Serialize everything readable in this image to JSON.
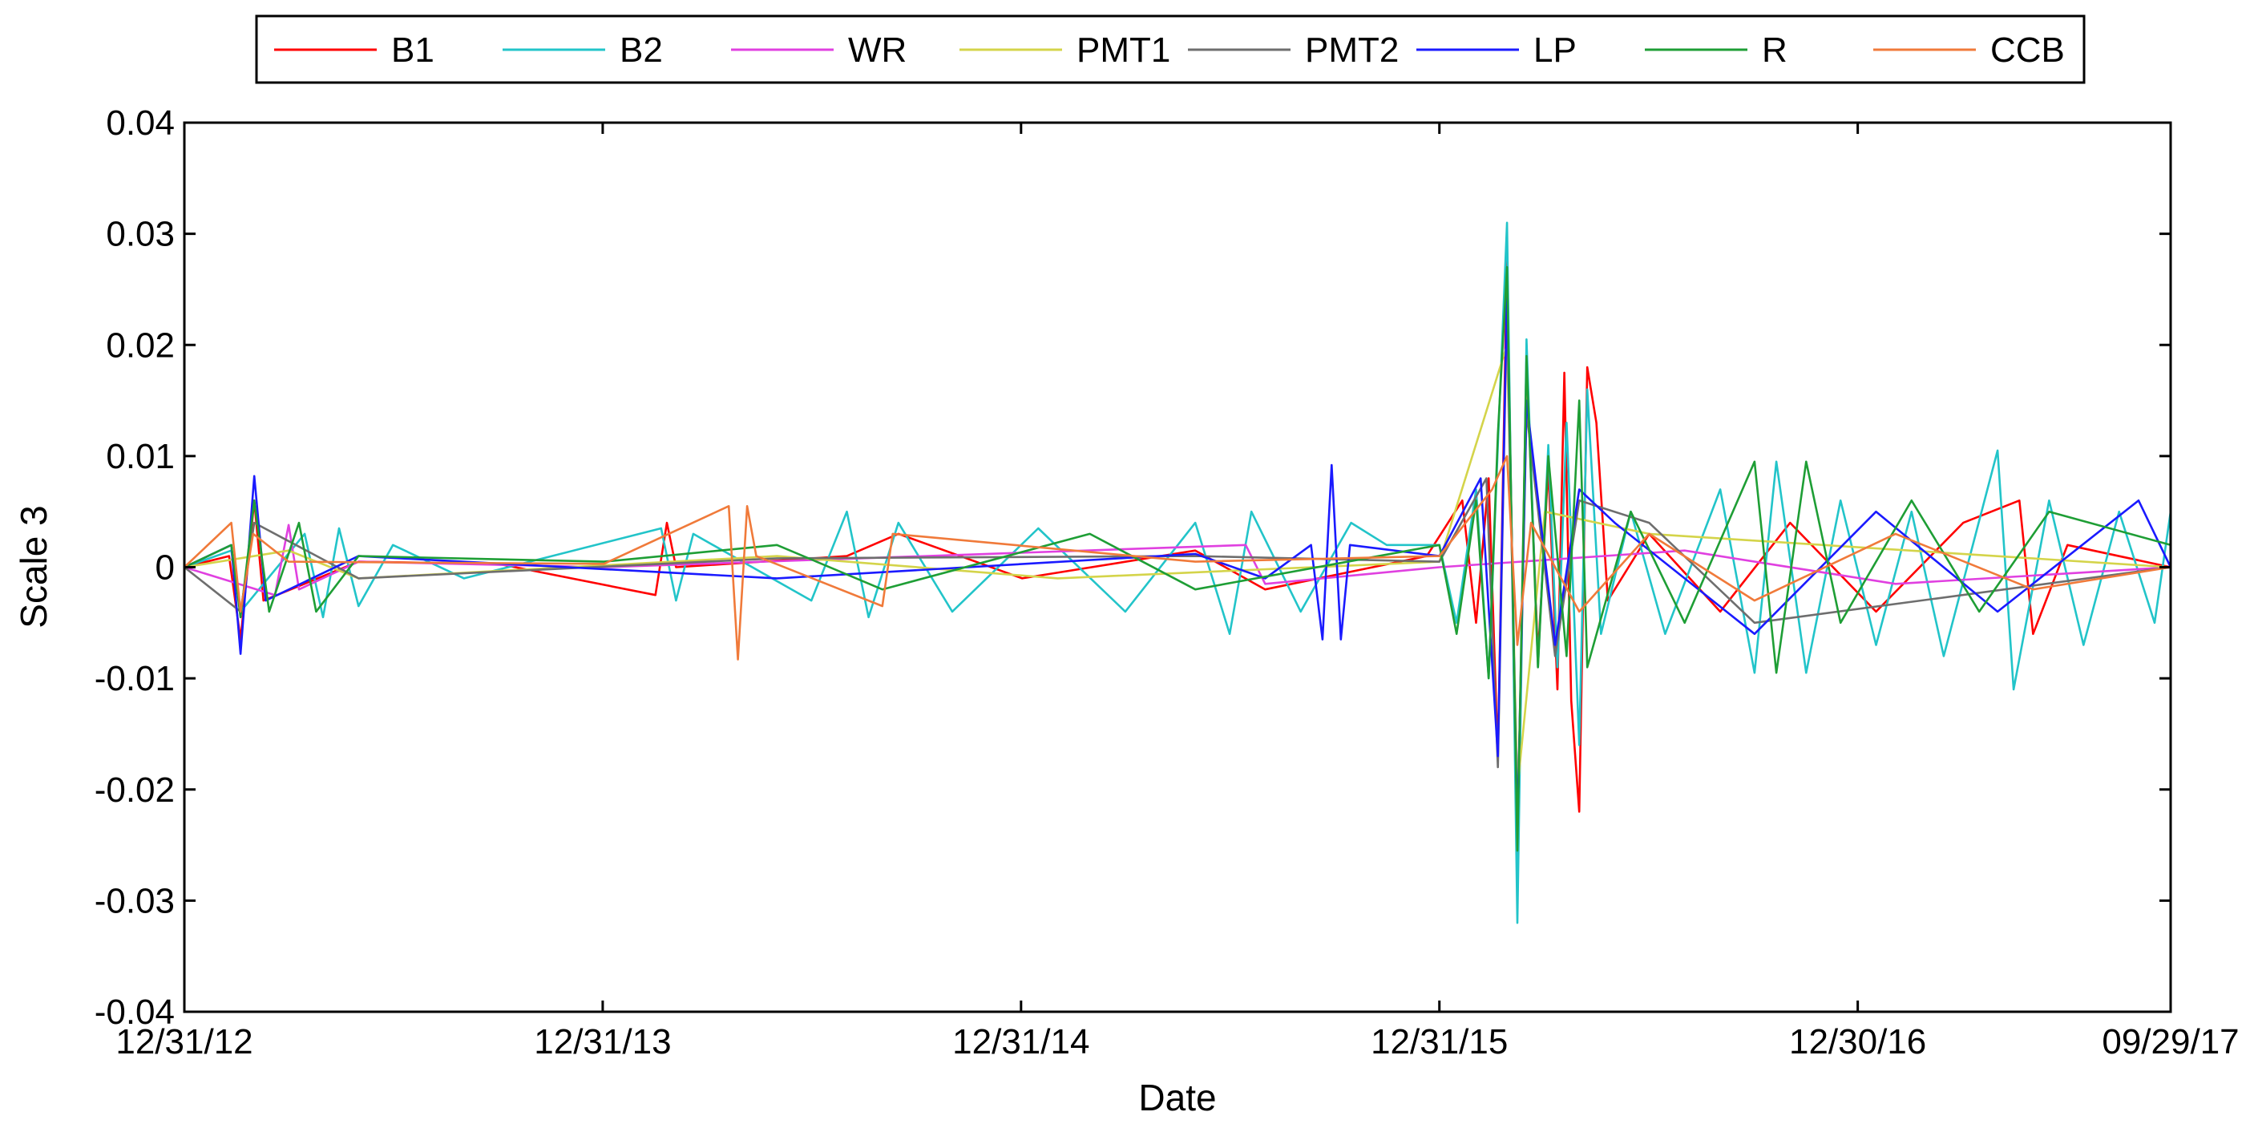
{
  "chart_data": {
    "type": "line",
    "title": "",
    "xlabel": "Date",
    "ylabel": "Scale 3",
    "ylim": [
      -0.04,
      0.04
    ],
    "yticks": [
      -0.04,
      -0.03,
      -0.02,
      -0.01,
      0,
      0.01,
      0.02,
      0.03,
      0.04
    ],
    "ytick_labels": [
      "-0.04",
      "-0.03",
      "-0.02",
      "-0.01",
      "0",
      "0.01",
      "0.02",
      "0.03",
      "0.04"
    ],
    "xlim": [
      "2012-12-31",
      "2017-09-29"
    ],
    "xticks": [
      "2012-12-31",
      "2013-12-31",
      "2014-12-31",
      "2015-12-31",
      "2016-12-30",
      "2017-09-29"
    ],
    "xtick_labels": [
      "12/31/12",
      "12/31/13",
      "12/31/14",
      "12/31/15",
      "12/30/16",
      "09/29/17"
    ],
    "grid": false,
    "legend_position": "top-center",
    "series": [
      {
        "name": "B1",
        "color": "#ff0000",
        "points": [
          [
            "2012-12-31",
            0
          ],
          [
            "2013-02-08",
            0.001
          ],
          [
            "2013-02-18",
            -0.0065
          ],
          [
            "2013-03-02",
            0.006
          ],
          [
            "2013-03-10",
            -0.003
          ],
          [
            "2013-06-01",
            0.0005
          ],
          [
            "2013-10-01",
            0.0003
          ],
          [
            "2014-02-15",
            -0.0025
          ],
          [
            "2014-02-25",
            0.004
          ],
          [
            "2014-03-05",
            0
          ],
          [
            "2014-08-01",
            0.001
          ],
          [
            "2014-09-15",
            0.003
          ],
          [
            "2015-01-01",
            -0.001
          ],
          [
            "2015-06-01",
            0.0015
          ],
          [
            "2015-08-01",
            -0.002
          ],
          [
            "2015-12-20",
            0.001
          ],
          [
            "2016-01-20",
            0.006
          ],
          [
            "2016-02-01",
            -0.005
          ],
          [
            "2016-02-12",
            0.008
          ],
          [
            "2016-02-20",
            -0.017
          ],
          [
            "2016-02-28",
            0.028
          ],
          [
            "2016-03-08",
            -0.028
          ],
          [
            "2016-03-16",
            0.019
          ],
          [
            "2016-03-26",
            -0.008
          ],
          [
            "2016-04-04",
            0.009
          ],
          [
            "2016-04-12",
            -0.011
          ],
          [
            "2016-04-18",
            0.0175
          ],
          [
            "2016-04-24",
            -0.012
          ],
          [
            "2016-05-01",
            -0.022
          ],
          [
            "2016-05-08",
            0.018
          ],
          [
            "2016-05-16",
            0.013
          ],
          [
            "2016-05-26",
            -0.003
          ],
          [
            "2016-07-01",
            0.003
          ],
          [
            "2016-09-01",
            -0.004
          ],
          [
            "2016-11-01",
            0.004
          ],
          [
            "2017-01-15",
            -0.004
          ],
          [
            "2017-04-01",
            0.004
          ],
          [
            "2017-05-20",
            0.006
          ],
          [
            "2017-06-01",
            -0.006
          ],
          [
            "2017-07-01",
            0.002
          ],
          [
            "2017-09-29",
            0
          ]
        ]
      },
      {
        "name": "B2",
        "color": "#22c4c9",
        "points": [
          [
            "2012-12-31",
            0
          ],
          [
            "2013-02-10",
            0.0015
          ],
          [
            "2013-02-18",
            -0.004
          ],
          [
            "2013-04-15",
            0.003
          ],
          [
            "2013-05-01",
            -0.0045
          ],
          [
            "2013-05-15",
            0.0035
          ],
          [
            "2013-06-01",
            -0.0035
          ],
          [
            "2013-07-01",
            0.002
          ],
          [
            "2013-09-01",
            -0.001
          ],
          [
            "2014-02-20",
            0.0035
          ],
          [
            "2014-03-05",
            -0.003
          ],
          [
            "2014-03-20",
            0.003
          ],
          [
            "2014-07-01",
            -0.003
          ],
          [
            "2014-08-01",
            0.005
          ],
          [
            "2014-08-20",
            -0.0045
          ],
          [
            "2014-09-15",
            0.004
          ],
          [
            "2014-11-01",
            -0.004
          ],
          [
            "2015-01-15",
            0.0035
          ],
          [
            "2015-04-01",
            -0.004
          ],
          [
            "2015-06-01",
            0.004
          ],
          [
            "2015-07-01",
            -0.006
          ],
          [
            "2015-07-20",
            0.005
          ],
          [
            "2015-09-01",
            -0.004
          ],
          [
            "2015-10-15",
            0.004
          ],
          [
            "2015-11-15",
            0.002
          ],
          [
            "2015-12-31",
            0.002
          ],
          [
            "2016-01-15",
            -0.005
          ],
          [
            "2016-02-01",
            0.007
          ],
          [
            "2016-02-12",
            -0.01
          ],
          [
            "2016-02-20",
            0.011
          ],
          [
            "2016-02-28",
            0.031
          ],
          [
            "2016-03-08",
            -0.032
          ],
          [
            "2016-03-16",
            0.0205
          ],
          [
            "2016-03-26",
            -0.009
          ],
          [
            "2016-04-04",
            0.011
          ],
          [
            "2016-04-12",
            -0.009
          ],
          [
            "2016-04-20",
            0.013
          ],
          [
            "2016-05-01",
            -0.016
          ],
          [
            "2016-05-08",
            0.016
          ],
          [
            "2016-05-20",
            -0.006
          ],
          [
            "2016-06-15",
            0.005
          ],
          [
            "2016-07-15",
            -0.006
          ],
          [
            "2016-09-01",
            0.007
          ],
          [
            "2016-10-01",
            -0.0095
          ],
          [
            "2016-10-20",
            0.0095
          ],
          [
            "2016-11-15",
            -0.0095
          ],
          [
            "2016-12-15",
            0.006
          ],
          [
            "2017-01-15",
            -0.007
          ],
          [
            "2017-02-15",
            0.005
          ],
          [
            "2017-03-15",
            -0.008
          ],
          [
            "2017-05-01",
            0.0105
          ],
          [
            "2017-05-15",
            -0.011
          ],
          [
            "2017-06-15",
            0.006
          ],
          [
            "2017-07-15",
            -0.007
          ],
          [
            "2017-08-15",
            0.005
          ],
          [
            "2017-09-15",
            -0.005
          ],
          [
            "2017-09-29",
            0.005
          ]
        ]
      },
      {
        "name": "WR",
        "color": "#e040e0",
        "points": [
          [
            "2012-12-31",
            0
          ],
          [
            "2013-03-20",
            -0.0025
          ],
          [
            "2013-04-01",
            0.0038
          ],
          [
            "2013-04-10",
            -0.002
          ],
          [
            "2013-06-01",
            0.0005
          ],
          [
            "2014-01-01",
            0
          ],
          [
            "2015-07-15",
            0.002
          ],
          [
            "2015-08-01",
            -0.0015
          ],
          [
            "2015-12-31",
            0
          ],
          [
            "2016-08-01",
            0.0015
          ],
          [
            "2017-02-01",
            -0.0015
          ],
          [
            "2017-09-29",
            0
          ]
        ]
      },
      {
        "name": "PMT1",
        "color": "#d4d44a",
        "points": [
          [
            "2012-12-31",
            0
          ],
          [
            "2013-04-01",
            0.0015
          ],
          [
            "2013-06-01",
            -0.001
          ],
          [
            "2014-06-01",
            0.001
          ],
          [
            "2015-02-01",
            -0.001
          ],
          [
            "2015-12-31",
            0.0005
          ],
          [
            "2016-02-28",
            0.02
          ],
          [
            "2016-03-08",
            -0.02
          ],
          [
            "2016-04-01",
            0.005
          ],
          [
            "2016-07-01",
            0.003
          ],
          [
            "2017-09-29",
            0
          ]
        ]
      },
      {
        "name": "PMT2",
        "color": "#6e6e6e",
        "points": [
          [
            "2012-12-31",
            0
          ],
          [
            "2013-02-18",
            -0.004
          ],
          [
            "2013-03-02",
            0.004
          ],
          [
            "2013-06-01",
            -0.001
          ],
          [
            "2014-06-01",
            0.0008
          ],
          [
            "2015-06-01",
            0.001
          ],
          [
            "2015-12-31",
            0.0005
          ],
          [
            "2016-02-10",
            0.008
          ],
          [
            "2016-02-20",
            -0.018
          ],
          [
            "2016-02-28",
            0.024
          ],
          [
            "2016-03-08",
            -0.024
          ],
          [
            "2016-03-16",
            0.014
          ],
          [
            "2016-04-10",
            -0.008
          ],
          [
            "2016-05-01",
            0.006
          ],
          [
            "2016-07-01",
            0.004
          ],
          [
            "2016-10-01",
            -0.005
          ],
          [
            "2017-09-29",
            0
          ]
        ]
      },
      {
        "name": "LP",
        "color": "#1a1aff",
        "points": [
          [
            "2012-12-31",
            0
          ],
          [
            "2013-02-10",
            0.002
          ],
          [
            "2013-02-18",
            -0.0078
          ],
          [
            "2013-03-02",
            0.0082
          ],
          [
            "2013-03-12",
            -0.003
          ],
          [
            "2013-06-01",
            0.001
          ],
          [
            "2014-06-01",
            -0.001
          ],
          [
            "2015-06-01",
            0.0012
          ],
          [
            "2015-08-01",
            -0.001
          ],
          [
            "2015-09-10",
            0.002
          ],
          [
            "2015-09-20",
            -0.0065
          ],
          [
            "2015-09-28",
            0.0092
          ],
          [
            "2015-10-06",
            -0.0065
          ],
          [
            "2015-10-14",
            0.002
          ],
          [
            "2015-12-31",
            0.001
          ],
          [
            "2016-02-05",
            0.008
          ],
          [
            "2016-02-20",
            -0.017
          ],
          [
            "2016-02-28",
            0.025
          ],
          [
            "2016-03-08",
            -0.024
          ],
          [
            "2016-03-16",
            0.015
          ],
          [
            "2016-04-10",
            -0.007
          ],
          [
            "2016-05-01",
            0.007
          ],
          [
            "2016-06-01",
            0.004
          ],
          [
            "2016-10-01",
            -0.006
          ],
          [
            "2017-01-15",
            0.005
          ],
          [
            "2017-05-01",
            -0.004
          ],
          [
            "2017-09-01",
            0.006
          ],
          [
            "2017-09-29",
            0
          ]
        ]
      },
      {
        "name": "R",
        "color": "#1e9e35",
        "points": [
          [
            "2012-12-31",
            0
          ],
          [
            "2013-02-10",
            0.002
          ],
          [
            "2013-02-18",
            -0.0045
          ],
          [
            "2013-03-02",
            0.006
          ],
          [
            "2013-03-15",
            -0.004
          ],
          [
            "2013-04-10",
            0.004
          ],
          [
            "2013-04-25",
            -0.004
          ],
          [
            "2013-06-01",
            0.001
          ],
          [
            "2014-01-01",
            0.0005
          ],
          [
            "2014-06-01",
            0.002
          ],
          [
            "2014-09-01",
            -0.002
          ],
          [
            "2015-03-01",
            0.003
          ],
          [
            "2015-06-01",
            -0.002
          ],
          [
            "2015-12-31",
            0.002
          ],
          [
            "2016-01-15",
            -0.006
          ],
          [
            "2016-02-01",
            0.006
          ],
          [
            "2016-02-12",
            -0.01
          ],
          [
            "2016-02-20",
            0.012
          ],
          [
            "2016-02-28",
            0.027
          ],
          [
            "2016-03-08",
            -0.0255
          ],
          [
            "2016-03-16",
            0.019
          ],
          [
            "2016-03-26",
            -0.009
          ],
          [
            "2016-04-04",
            0.01
          ],
          [
            "2016-04-20",
            -0.008
          ],
          [
            "2016-05-01",
            0.015
          ],
          [
            "2016-05-08",
            -0.009
          ],
          [
            "2016-06-15",
            0.005
          ],
          [
            "2016-08-01",
            -0.005
          ],
          [
            "2016-10-01",
            0.0095
          ],
          [
            "2016-10-20",
            -0.0095
          ],
          [
            "2016-11-15",
            0.0095
          ],
          [
            "2016-12-15",
            -0.005
          ],
          [
            "2017-02-15",
            0.006
          ],
          [
            "2017-04-15",
            -0.004
          ],
          [
            "2017-06-15",
            0.005
          ],
          [
            "2017-09-29",
            0.002
          ]
        ]
      },
      {
        "name": "CCB",
        "color": "#f07a3a",
        "points": [
          [
            "2012-12-31",
            0
          ],
          [
            "2013-02-10",
            0.004
          ],
          [
            "2013-02-18",
            -0.004
          ],
          [
            "2013-03-01",
            0.003
          ],
          [
            "2013-04-01",
            0.0005
          ],
          [
            "2014-01-01",
            0.0003
          ],
          [
            "2014-04-20",
            0.0055
          ],
          [
            "2014-04-28",
            -0.0083
          ],
          [
            "2014-05-06",
            0.0055
          ],
          [
            "2014-05-14",
            0.001
          ],
          [
            "2014-09-01",
            -0.0035
          ],
          [
            "2014-09-10",
            0.003
          ],
          [
            "2015-06-01",
            0.0005
          ],
          [
            "2015-12-31",
            0.001
          ],
          [
            "2016-02-15",
            0.007
          ],
          [
            "2016-02-28",
            0.01
          ],
          [
            "2016-03-08",
            -0.007
          ],
          [
            "2016-03-20",
            0.004
          ],
          [
            "2016-05-01",
            -0.004
          ],
          [
            "2016-07-01",
            0.003
          ],
          [
            "2016-10-01",
            -0.003
          ],
          [
            "2017-02-01",
            0.003
          ],
          [
            "2017-06-01",
            -0.002
          ],
          [
            "2017-09-29",
            0
          ]
        ]
      }
    ]
  }
}
